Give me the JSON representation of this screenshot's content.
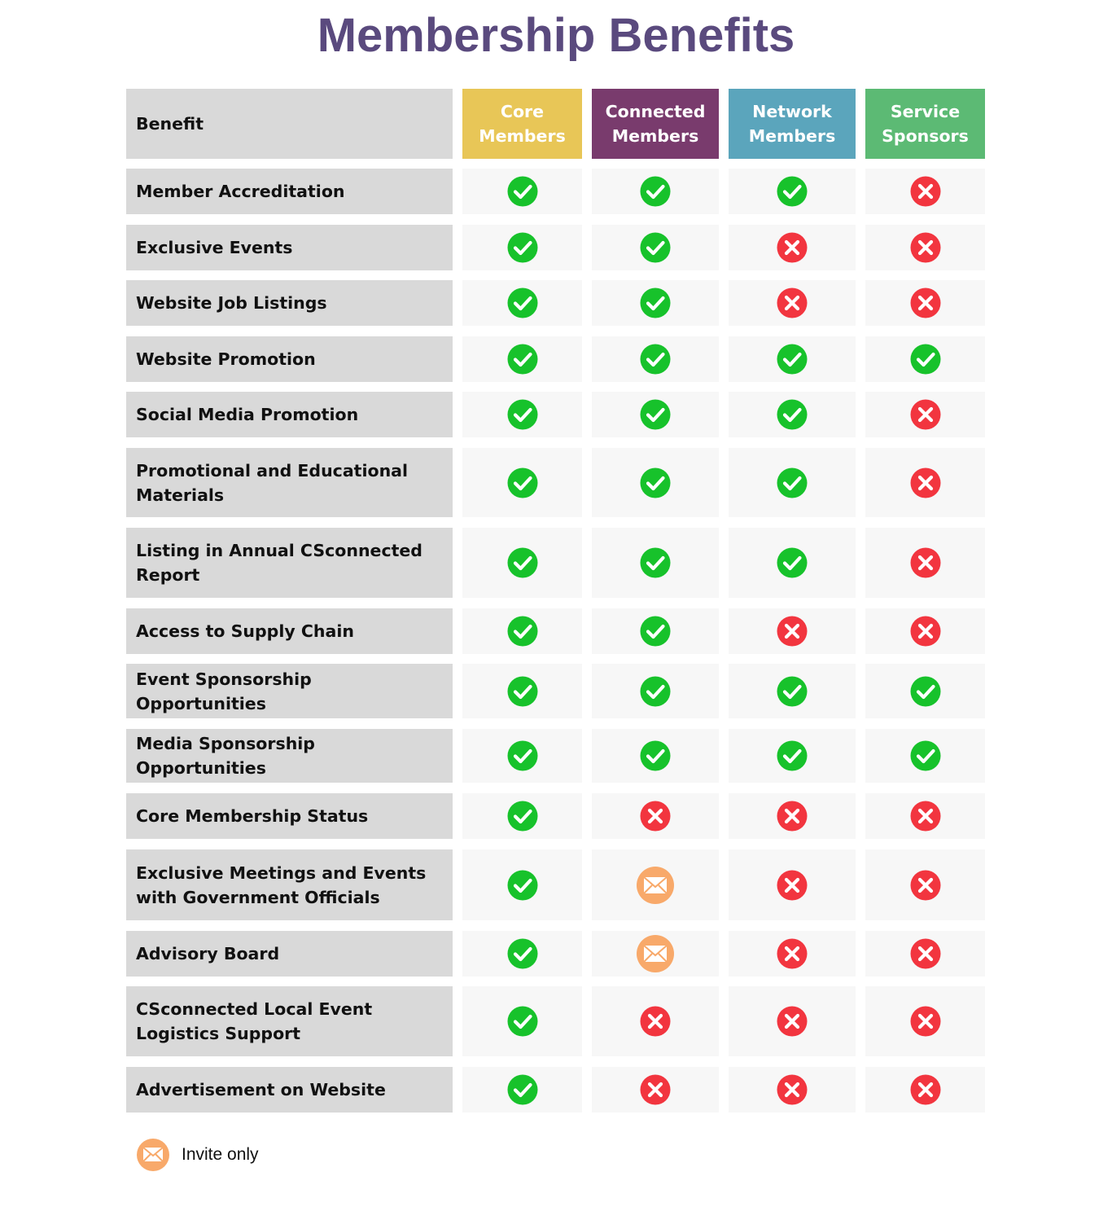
{
  "title": "Membership Benefits",
  "table": {
    "header": "Benefit",
    "columns": [
      {
        "label": "Core Members",
        "color": "#e8c657"
      },
      {
        "label": "Connected Members",
        "color": "#793b6d"
      },
      {
        "label": "Network Members",
        "color": "#5ba5bc"
      },
      {
        "label": "Service Sponsors",
        "color": "#5cba74"
      }
    ],
    "rows": [
      {
        "label": "Member Accreditation",
        "status": [
          "check",
          "check",
          "check",
          "cross"
        ]
      },
      {
        "label": "Exclusive Events",
        "status": [
          "check",
          "check",
          "cross",
          "cross"
        ]
      },
      {
        "label": "Website Job Listings",
        "status": [
          "check",
          "check",
          "cross",
          "cross"
        ]
      },
      {
        "label": "Website Promotion",
        "status": [
          "check",
          "check",
          "check",
          "check"
        ]
      },
      {
        "label": "Social Media Promotion",
        "status": [
          "check",
          "check",
          "check",
          "cross"
        ]
      },
      {
        "label": "Promotional and Educational Materials",
        "status": [
          "check",
          "check",
          "check",
          "cross"
        ]
      },
      {
        "label": "Listing in Annual CSconnected Report",
        "status": [
          "check",
          "check",
          "check",
          "cross"
        ]
      },
      {
        "label": "Access to Supply Chain",
        "status": [
          "check",
          "check",
          "cross",
          "cross"
        ]
      },
      {
        "label": "Event Sponsorship Opportunities",
        "status": [
          "check",
          "check",
          "check",
          "check"
        ]
      },
      {
        "label": "Media Sponsorship Opportunities",
        "status": [
          "check",
          "check",
          "check",
          "check"
        ]
      },
      {
        "label": "Core Membership Status",
        "status": [
          "check",
          "cross",
          "cross",
          "cross"
        ]
      },
      {
        "label": "Exclusive Meetings and Events with Government Officials",
        "status": [
          "check",
          "invite",
          "cross",
          "cross"
        ]
      },
      {
        "label": "Advisory Board",
        "status": [
          "check",
          "invite",
          "cross",
          "cross"
        ]
      },
      {
        "label": "CSconnected Local Event Logistics Support",
        "status": [
          "check",
          "cross",
          "cross",
          "cross"
        ]
      },
      {
        "label": "Advertisement on Website",
        "status": [
          "check",
          "cross",
          "cross",
          "cross"
        ]
      }
    ]
  },
  "legend": {
    "label": "Invite only"
  }
}
